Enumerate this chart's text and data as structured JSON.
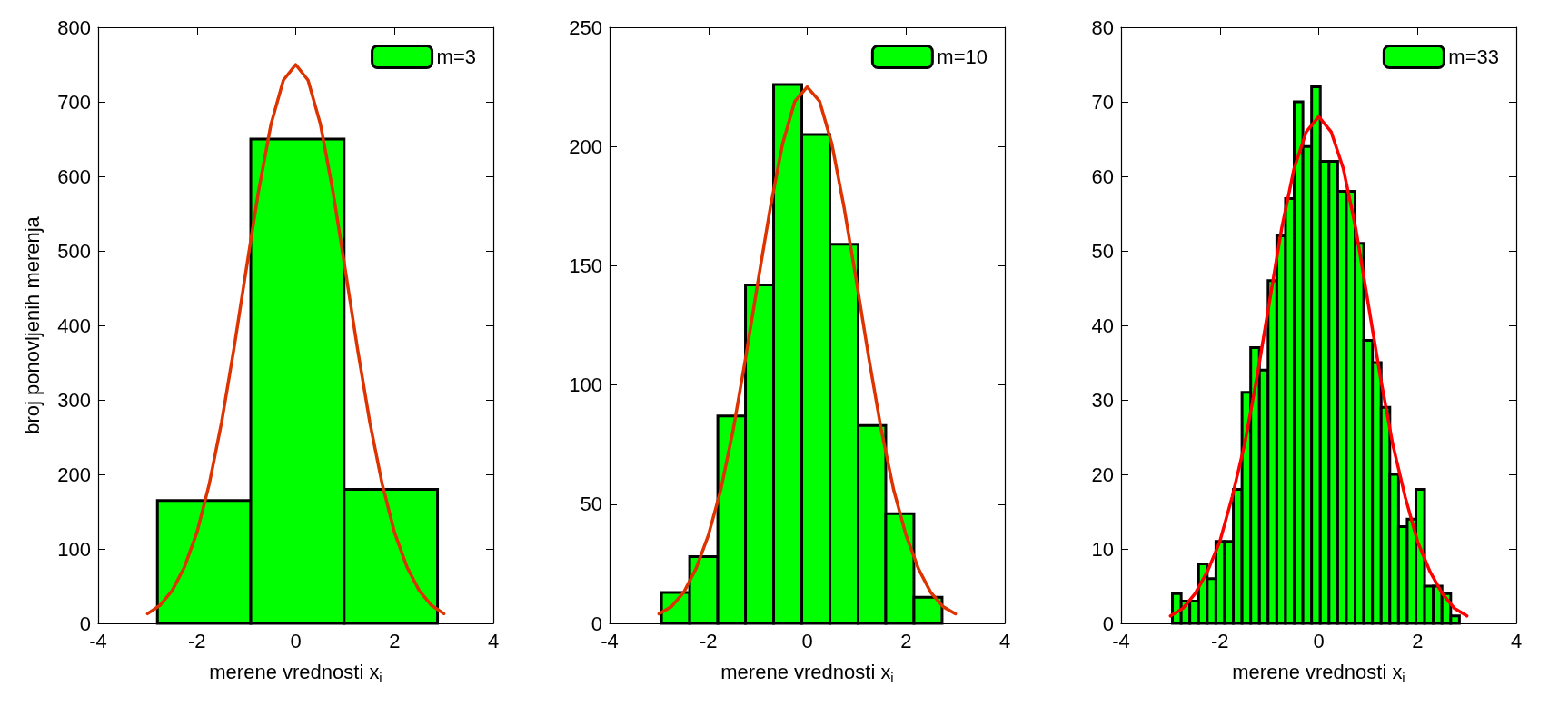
{
  "chart_data": [
    {
      "type": "histogram",
      "ylabel": "broj ponovljenih merenja",
      "xlabel": "merene vrednosti x$_{i}$",
      "bins": [
        -2.8,
        -0.91,
        0.98,
        2.87
      ],
      "series": [
        {
          "name": "m=3",
          "color": "#00ff00",
          "values": [
            165,
            650,
            180
          ]
        },
        {
          "type": "line",
          "color": "#dd3300",
          "x": [
            -3,
            -2.75,
            -2.5,
            -2.25,
            -2,
            -1.75,
            -1.5,
            -1.25,
            -1,
            -0.75,
            -0.5,
            -0.25,
            0,
            0.25,
            0.5,
            0.75,
            1,
            1.25,
            1.5,
            1.75,
            2,
            2.25,
            2.5,
            2.75,
            3
          ],
          "values": [
            13,
            24,
            44,
            76,
            122,
            187,
            270,
            369,
            476,
            581,
            670,
            729,
            750,
            729,
            670,
            581,
            476,
            369,
            270,
            187,
            122,
            76,
            44,
            24,
            13
          ]
        }
      ],
      "xlim": [
        -4,
        4
      ],
      "xticks": [
        -4,
        -2,
        0,
        2,
        4
      ],
      "ylim": [
        0,
        800
      ],
      "yticks": [
        0,
        100,
        200,
        300,
        400,
        500,
        600,
        700,
        800
      ],
      "grid": false,
      "legend": "top right",
      "line_style": "solid",
      "marker": "none"
    },
    {
      "type": "histogram",
      "xlabel": "merene vrednosti x$_{i}$",
      "bins": [
        -2.95,
        -2.38,
        -1.81,
        -1.25,
        -0.68,
        -0.11,
        0.46,
        1.03,
        1.59,
        2.16,
        2.73
      ],
      "series": [
        {
          "name": "m=10",
          "color": "#00ff00",
          "values": [
            13,
            28,
            87,
            142,
            226,
            205,
            159,
            83,
            46,
            11
          ]
        },
        {
          "type": "line",
          "color": "#dd3300",
          "x": [
            -3,
            -2.75,
            -2.5,
            -2.25,
            -2,
            -1.75,
            -1.5,
            -1.25,
            -1,
            -0.75,
            -0.5,
            -0.25,
            0,
            0.25,
            0.5,
            0.75,
            1,
            1.25,
            1.5,
            1.75,
            2,
            2.25,
            2.5,
            2.75,
            3
          ],
          "values": [
            4,
            7,
            13,
            23,
            37,
            56,
            81,
            111,
            143,
            174,
            201,
            219,
            225,
            219,
            201,
            174,
            143,
            111,
            81,
            56,
            37,
            23,
            13,
            7,
            4
          ]
        }
      ],
      "xlim": [
        -4,
        4
      ],
      "xticks": [
        -4,
        -2,
        0,
        2,
        4
      ],
      "ylim": [
        0,
        250
      ],
      "yticks": [
        0,
        50,
        100,
        150,
        200,
        250
      ],
      "grid": false,
      "legend": "top right",
      "line_style": "solid",
      "marker": "none"
    },
    {
      "type": "histogram",
      "xlabel": "merene vrednosti x$_{i}$",
      "bins": [
        -2.96,
        -2.784,
        -2.608,
        -2.432,
        -2.256,
        -2.08,
        -1.904,
        -1.728,
        -1.552,
        -1.376,
        -1.2,
        -1.024,
        -0.848,
        -0.672,
        -0.496,
        -0.32,
        -0.144,
        0.032,
        0.208,
        0.384,
        0.56,
        0.736,
        0.912,
        1.088,
        1.264,
        1.44,
        1.616,
        1.792,
        1.968,
        2.144,
        2.32,
        2.496,
        2.672,
        2.848
      ],
      "series": [
        {
          "name": "m=33",
          "color": "#00ff00",
          "values": [
            4,
            3,
            3,
            8,
            6,
            11,
            11,
            18,
            31,
            37,
            34,
            46,
            52,
            57,
            70,
            64,
            72,
            62,
            62,
            58,
            58,
            51,
            38,
            35,
            29,
            20,
            13,
            14,
            18,
            5,
            5,
            4,
            1
          ]
        },
        {
          "type": "line",
          "color": "#ff0000",
          "x": [
            -3,
            -2.75,
            -2.5,
            -2.25,
            -2,
            -1.75,
            -1.5,
            -1.25,
            -1,
            -0.75,
            -0.5,
            -0.25,
            0,
            0.25,
            0.5,
            0.75,
            1,
            1.25,
            1.5,
            1.75,
            2,
            2.25,
            2.5,
            2.75,
            3
          ],
          "values": [
            1,
            2,
            4,
            7,
            11,
            17,
            24,
            33,
            43,
            53,
            61,
            66,
            68,
            66,
            61,
            53,
            43,
            33,
            24,
            17,
            11,
            7,
            4,
            2,
            1
          ]
        }
      ],
      "xlim": [
        -4,
        4
      ],
      "xticks": [
        -4,
        -2,
        0,
        2,
        4
      ],
      "ylim": [
        0,
        80
      ],
      "yticks": [
        0,
        10,
        20,
        30,
        40,
        50,
        60,
        70,
        80
      ],
      "grid": false,
      "legend": "top right",
      "line_style": "solid",
      "marker": "none"
    }
  ]
}
